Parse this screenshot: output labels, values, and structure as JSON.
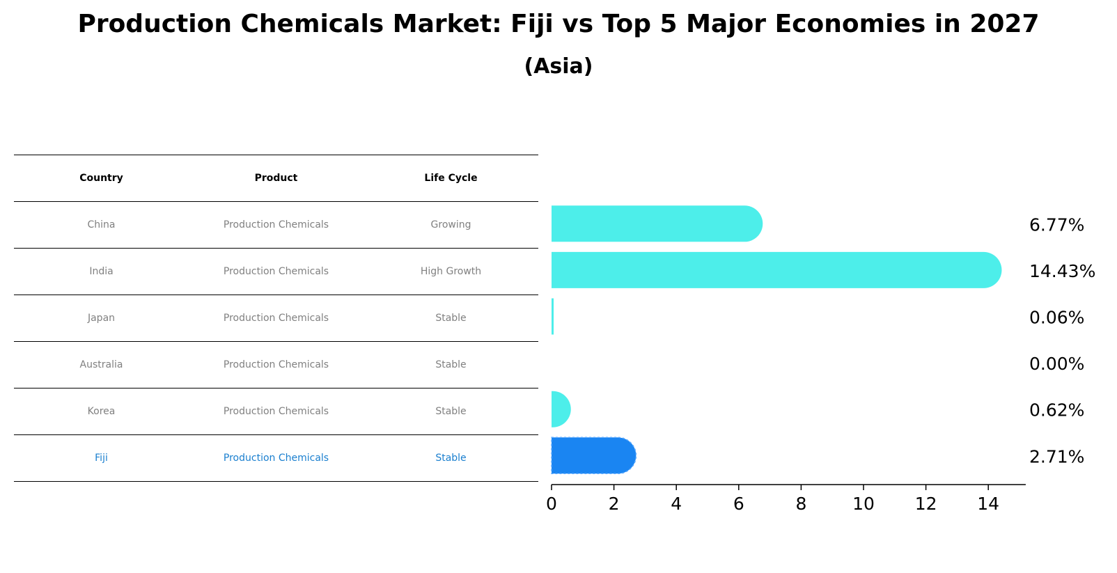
{
  "title": "Production Chemicals Market: Fiji vs Top 5 Major Economies in 2027",
  "subtitle": "(Asia)",
  "table": {
    "headers": [
      "Country",
      "Product",
      "Life Cycle"
    ],
    "rows": [
      [
        "China",
        "Production Chemicals",
        "Growing"
      ],
      [
        "India",
        "Production Chemicals",
        "High Growth"
      ],
      [
        "Japan",
        "Production Chemicals",
        "Stable"
      ],
      [
        "Australia",
        "Production Chemicals",
        "Stable"
      ],
      [
        "Korea",
        "Production Chemicals",
        "Stable"
      ],
      [
        "Fiji",
        "Production Chemicals",
        "Stable"
      ]
    ],
    "highlight_row": 5
  },
  "chart_data": {
    "type": "bar",
    "orientation": "horizontal",
    "categories": [
      "China",
      "India",
      "Japan",
      "Australia",
      "Korea",
      "Fiji"
    ],
    "values": [
      6.77,
      14.43,
      0.06,
      0.0,
      0.62,
      2.71
    ],
    "value_labels": [
      "6.77%",
      "14.43%",
      "0.06%",
      "0.00%",
      "0.62%",
      "2.71%"
    ],
    "xlim": [
      0,
      15.2
    ],
    "xticks": [
      0,
      2,
      4,
      6,
      8,
      10,
      12,
      14
    ],
    "xtick_labels": [
      "0",
      "2",
      "4",
      "6",
      "8",
      "10",
      "12",
      "14"
    ],
    "colors": {
      "default": "#4deeea",
      "highlight": "#1a85f2"
    },
    "highlight_index": 5,
    "xlabel": "",
    "ylabel": ""
  }
}
